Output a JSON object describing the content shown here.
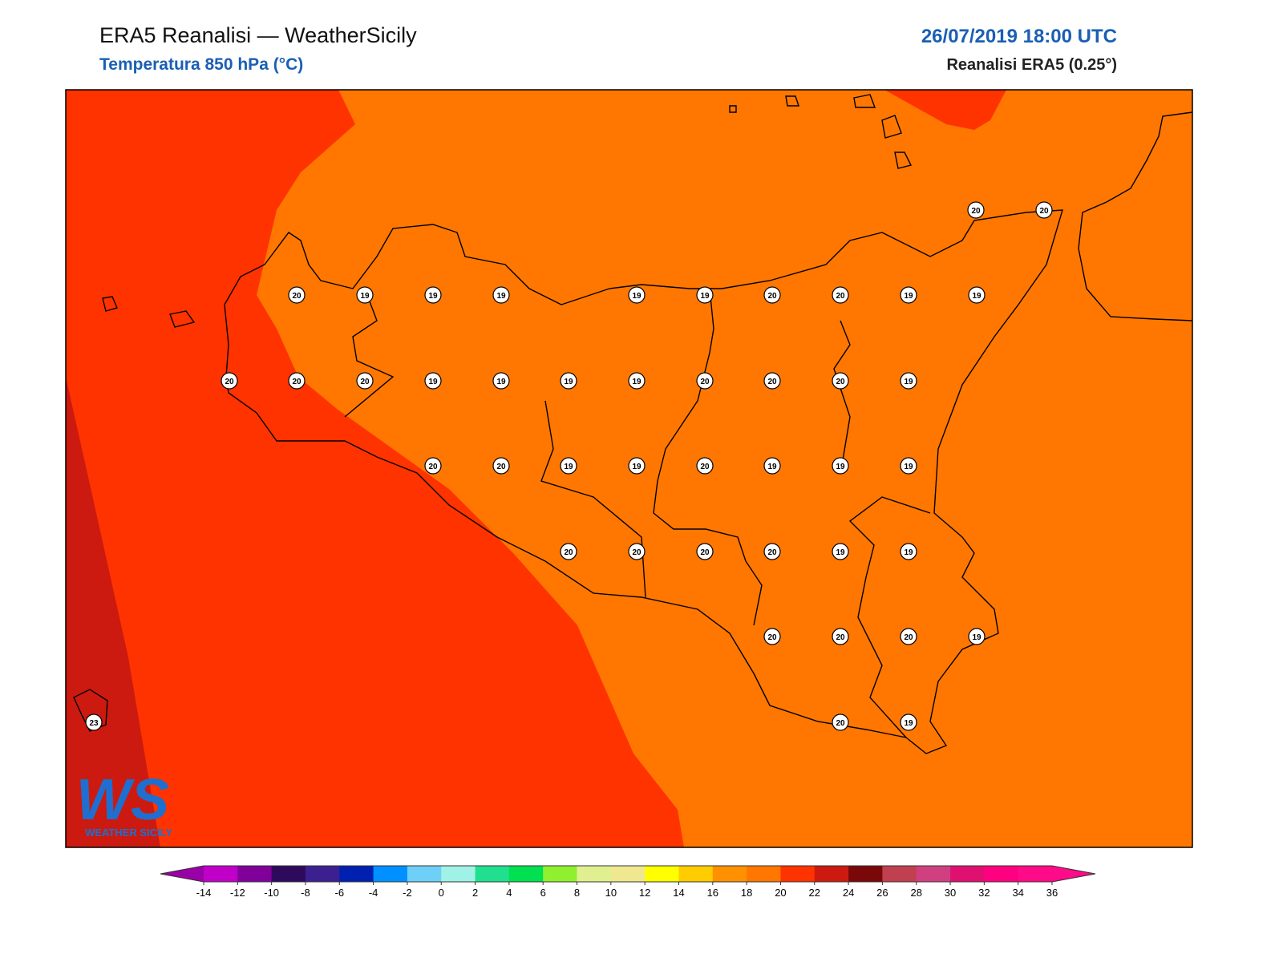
{
  "header": {
    "title": "ERA5 Reanalisi — WeatherSicily",
    "subtitle": "Temperatura 850 hPa (°C)",
    "datetime": "26/07/2019 18:00 UTC",
    "source": "Reanalisi ERA5 (0.25°)"
  },
  "stations": [
    20,
    20,
    20,
    19,
    19,
    19,
    19,
    19,
    20,
    20,
    19,
    19,
    20,
    20,
    20,
    19,
    19,
    19,
    19,
    20,
    20,
    20,
    19,
    20,
    20,
    19,
    19,
    20,
    19,
    19,
    19,
    20,
    20,
    20,
    20,
    19,
    19,
    20,
    20,
    20,
    19,
    23,
    20,
    19
  ],
  "logo": {
    "mark": "WS",
    "text": "WEATHER SICILY"
  },
  "colorbar": {
    "ticks": [
      -14,
      -12,
      -10,
      -8,
      -6,
      -4,
      -2,
      0,
      2,
      4,
      6,
      8,
      10,
      12,
      14,
      16,
      18,
      20,
      22,
      24,
      26,
      28,
      30,
      32,
      34,
      36
    ],
    "under_color": "#9a00a8",
    "over_color": "#ff0a88",
    "colors": [
      "#c000c8",
      "#80009a",
      "#2e0a5c",
      "#3c2090",
      "#0020b0",
      "#0090ff",
      "#6ed0f8",
      "#a0f2e6",
      "#20e090",
      "#00e050",
      "#90f030",
      "#e0f090",
      "#f0e890",
      "#ffff00",
      "#ffcc00",
      "#ff9000",
      "#ff7700",
      "#ff3300",
      "#cc1a10",
      "#7a0808",
      "#c04050",
      "#d04080",
      "#e01070",
      "#ff0080",
      "#ff0a88"
    ]
  }
}
